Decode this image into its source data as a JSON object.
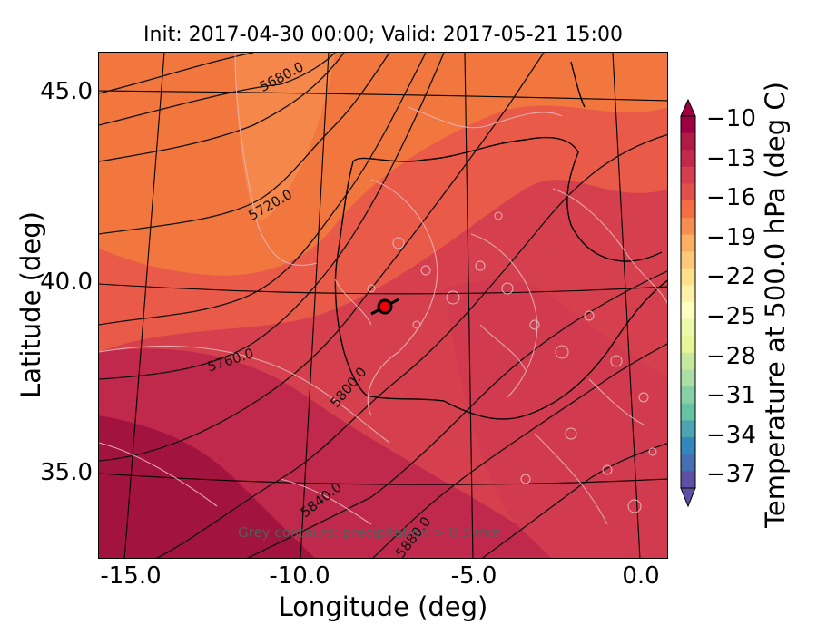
{
  "title": "Init: 2017-04-30 00:00; Valid: 2017-05-21 15:00",
  "xlabel": "Longitude (deg)",
  "ylabel": "Latitude (deg)",
  "x_ticks": [
    "-15.0",
    "-10.0",
    "-5.0",
    "0.0"
  ],
  "y_ticks": [
    "45.0",
    "40.0",
    "35.0"
  ],
  "colorbar": {
    "label": "Temperature at 500.0 hPa (deg C)",
    "ticks": [
      "−10",
      "−13",
      "−16",
      "−19",
      "−22",
      "−25",
      "−28",
      "−31",
      "−34",
      "−37"
    ],
    "colors": [
      "#9e0142",
      "#b01b47",
      "#c2294a",
      "#d53e4f",
      "#e1504a",
      "#f46d43",
      "#f88d52",
      "#fdae61",
      "#fdc877",
      "#fee08b",
      "#fff0a8",
      "#ffffbf",
      "#eef8a9",
      "#e6f598",
      "#c5e89c",
      "#abdda4",
      "#87cfa4",
      "#66c2a5",
      "#4ea3b0",
      "#3288bd",
      "#4470b1",
      "#5e4fa2"
    ]
  },
  "contour_labels": [
    "5680.0",
    "5720.0",
    "5760.0",
    "5800.0",
    "5840.0",
    "5880.0"
  ],
  "caption": "Grey contours: precipitation > 0.5 mm",
  "marker": {
    "color": "#e8000b",
    "label": "station"
  },
  "colors": {
    "warmest": "#a3133f",
    "warm": "#d6404e",
    "mid": "#e95a48",
    "orange": "#f1773f",
    "light_orange": "#f99a55"
  }
}
